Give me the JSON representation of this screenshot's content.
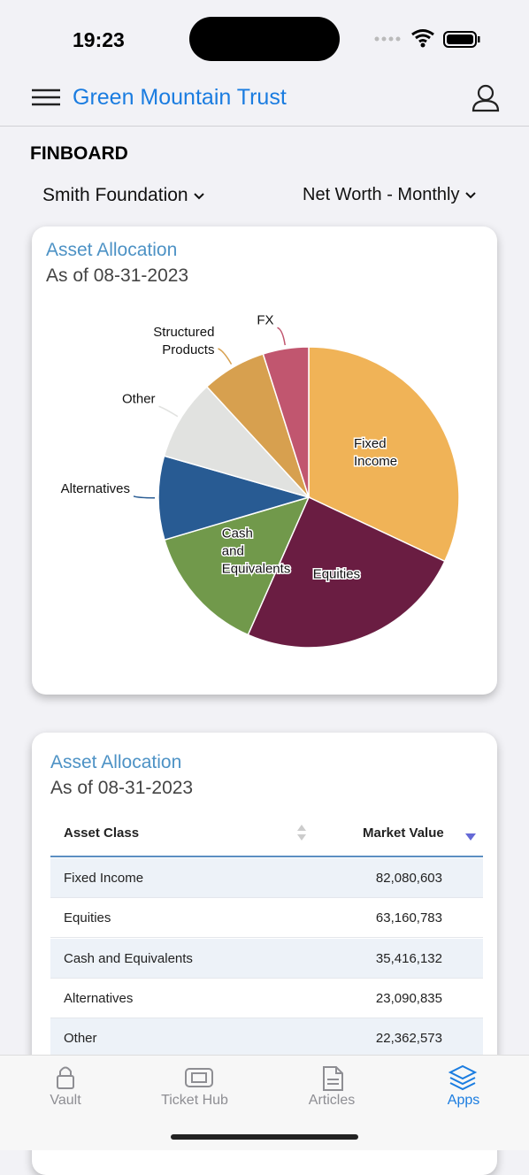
{
  "status": {
    "time": "19:23"
  },
  "header": {
    "title": "Green Mountain Trust"
  },
  "page": {
    "title": "FINBOARD"
  },
  "filters": {
    "entity": "Smith Foundation",
    "view": "Net Worth - Monthly"
  },
  "chart_data": {
    "type": "pie",
    "title": "Asset Allocation",
    "subtitle": "As of 08-31-2023",
    "categories": [
      "Fixed Income",
      "Equities",
      "Cash and Equivalents",
      "Alternatives",
      "Other",
      "Structured Products",
      "FX"
    ],
    "values": [
      82080603,
      63160783,
      35416132,
      23090835,
      22362573,
      17800000,
      12600000
    ],
    "colors": [
      "#f0b357",
      "#6a1d42",
      "#71994b",
      "#285b93",
      "#e1e2e0",
      "#d7a04f",
      "#c1566f"
    ]
  },
  "table": {
    "title": "Asset Allocation",
    "subtitle": "As of 08-31-2023",
    "columns": [
      "Asset Class",
      "Market Value"
    ],
    "rows": [
      [
        "Fixed Income",
        "82,080,603"
      ],
      [
        "Equities",
        "63,160,783"
      ],
      [
        "Cash and Equivalents",
        "35,416,132"
      ],
      [
        "Alternatives",
        "23,090,835"
      ],
      [
        "Other",
        "22,362,573"
      ]
    ]
  },
  "nav": {
    "tabs": [
      "Vault",
      "Ticket Hub",
      "Articles",
      "Apps"
    ]
  }
}
